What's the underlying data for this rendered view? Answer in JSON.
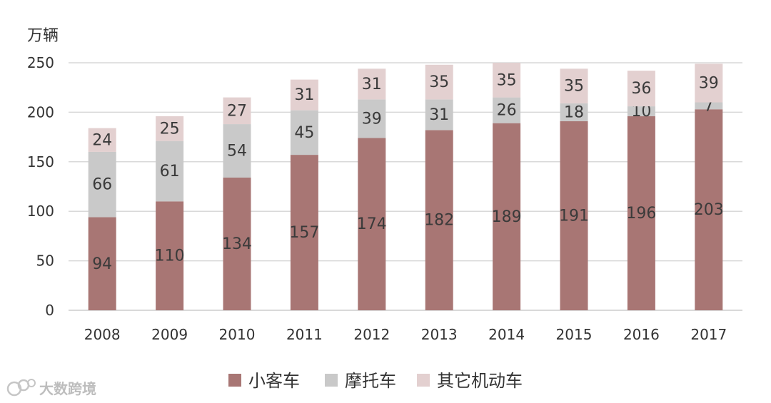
{
  "chart_data": {
    "type": "bar",
    "stacked": true,
    "ylabel": "万辆",
    "ylim": [
      0,
      250
    ],
    "yticks": [
      0,
      50,
      100,
      150,
      200,
      250
    ],
    "categories": [
      "2008",
      "2009",
      "2010",
      "2011",
      "2012",
      "2013",
      "2014",
      "2015",
      "2016",
      "2017"
    ],
    "series": [
      {
        "name": "小客车",
        "color": "#a87674",
        "values": [
          94,
          110,
          134,
          157,
          174,
          182,
          189,
          191,
          196,
          203
        ]
      },
      {
        "name": "摩托车",
        "color": "#c9c9c9",
        "values": [
          66,
          61,
          54,
          45,
          39,
          31,
          26,
          18,
          10,
          7
        ]
      },
      {
        "name": "其它机动车",
        "color": "#e3d0d0",
        "values": [
          24,
          25,
          27,
          31,
          31,
          35,
          35,
          35,
          36,
          39
        ]
      }
    ],
    "grid": true,
    "legend_position": "bottom"
  },
  "watermark": {
    "text": "大数跨境",
    "icon": "logo-icon"
  }
}
